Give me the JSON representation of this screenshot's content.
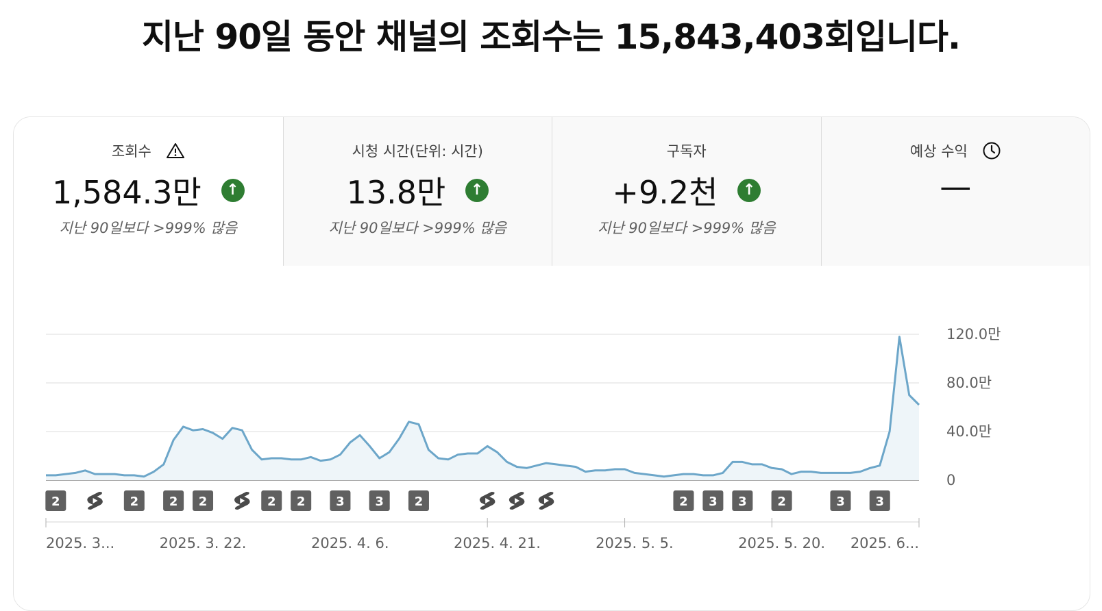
{
  "headline": "지난 90일 동안 채널의 조회수는 15,843,403회입니다.",
  "tabs": [
    {
      "label": "조회수",
      "value": "1,584.3만",
      "compare": "지난 90일보다 >999% 많음",
      "icon": "warning-icon",
      "trend": "up",
      "selected": true
    },
    {
      "label": "시청 시간(단위: 시간)",
      "value": "13.8만",
      "compare": "지난 90일보다 >999% 많음",
      "icon": "",
      "trend": "up",
      "selected": false
    },
    {
      "label": "구독자",
      "value": "+9.2천",
      "compare": "지난 90일보다 >999% 많음",
      "icon": "",
      "trend": "up",
      "selected": false
    },
    {
      "label": "예상 수익",
      "value": "—",
      "compare": "",
      "icon": "clock-icon",
      "trend": "",
      "selected": false
    }
  ],
  "colors": {
    "line": "#6ca6c9",
    "area": "#eef5f9",
    "up": "#2e7d32",
    "badge": "#606060"
  },
  "chart_data": {
    "type": "area",
    "series": [
      {
        "values": [
          4,
          4,
          5,
          6,
          8,
          5,
          5,
          5,
          4,
          4,
          3,
          7,
          13,
          33,
          44,
          41,
          42,
          39,
          34,
          43,
          41,
          25,
          17,
          18,
          18,
          17,
          17,
          19,
          16,
          17,
          21,
          31,
          37,
          28,
          18,
          23,
          34,
          48,
          46,
          25,
          18,
          17,
          21,
          22,
          22,
          28,
          23,
          15,
          11,
          10,
          12,
          14,
          13,
          12,
          11,
          7,
          8,
          8,
          9,
          9,
          6,
          5,
          4,
          3,
          4,
          5,
          5,
          4,
          4,
          6,
          15,
          15,
          13,
          13,
          10,
          9,
          5,
          7,
          7,
          6,
          6,
          6,
          6,
          7,
          10,
          12,
          40,
          118,
          70,
          62
        ]
      }
    ],
    "y_ticks": [
      "120.0만",
      "80.0만",
      "40.0만",
      "0"
    ],
    "y_tick_values": [
      120,
      80,
      40,
      0
    ],
    "ylim": [
      0,
      120
    ],
    "x_tick_labels": [
      "2025. 3...",
      "2025. 3. 22.",
      "2025. 4. 6.",
      "2025. 4. 21.",
      "2025. 5. 5.",
      "2025. 5. 20.",
      "2025. 6..."
    ],
    "x_tick_index": [
      0,
      16,
      31,
      46,
      60,
      75,
      89
    ],
    "x_divider_index": [
      0,
      45,
      59,
      74,
      89
    ],
    "gridlines": true,
    "markers": [
      {
        "index": 1,
        "kind": "count",
        "text": "2"
      },
      {
        "index": 5,
        "kind": "shorts",
        "text": ""
      },
      {
        "index": 9,
        "kind": "count",
        "text": "2"
      },
      {
        "index": 13,
        "kind": "count",
        "text": "2"
      },
      {
        "index": 16,
        "kind": "count",
        "text": "2"
      },
      {
        "index": 20,
        "kind": "shorts",
        "text": ""
      },
      {
        "index": 23,
        "kind": "count",
        "text": "2"
      },
      {
        "index": 26,
        "kind": "count",
        "text": "2"
      },
      {
        "index": 30,
        "kind": "count",
        "text": "3"
      },
      {
        "index": 34,
        "kind": "count",
        "text": "3"
      },
      {
        "index": 38,
        "kind": "count",
        "text": "2"
      },
      {
        "index": 45,
        "kind": "shorts",
        "text": ""
      },
      {
        "index": 48,
        "kind": "shorts",
        "text": ""
      },
      {
        "index": 51,
        "kind": "shorts",
        "text": ""
      },
      {
        "index": 65,
        "kind": "count",
        "text": "2"
      },
      {
        "index": 68,
        "kind": "count",
        "text": "3"
      },
      {
        "index": 71,
        "kind": "count",
        "text": "3"
      },
      {
        "index": 75,
        "kind": "count",
        "text": "2"
      },
      {
        "index": 81,
        "kind": "count",
        "text": "3"
      },
      {
        "index": 85,
        "kind": "count",
        "text": "3"
      }
    ]
  }
}
